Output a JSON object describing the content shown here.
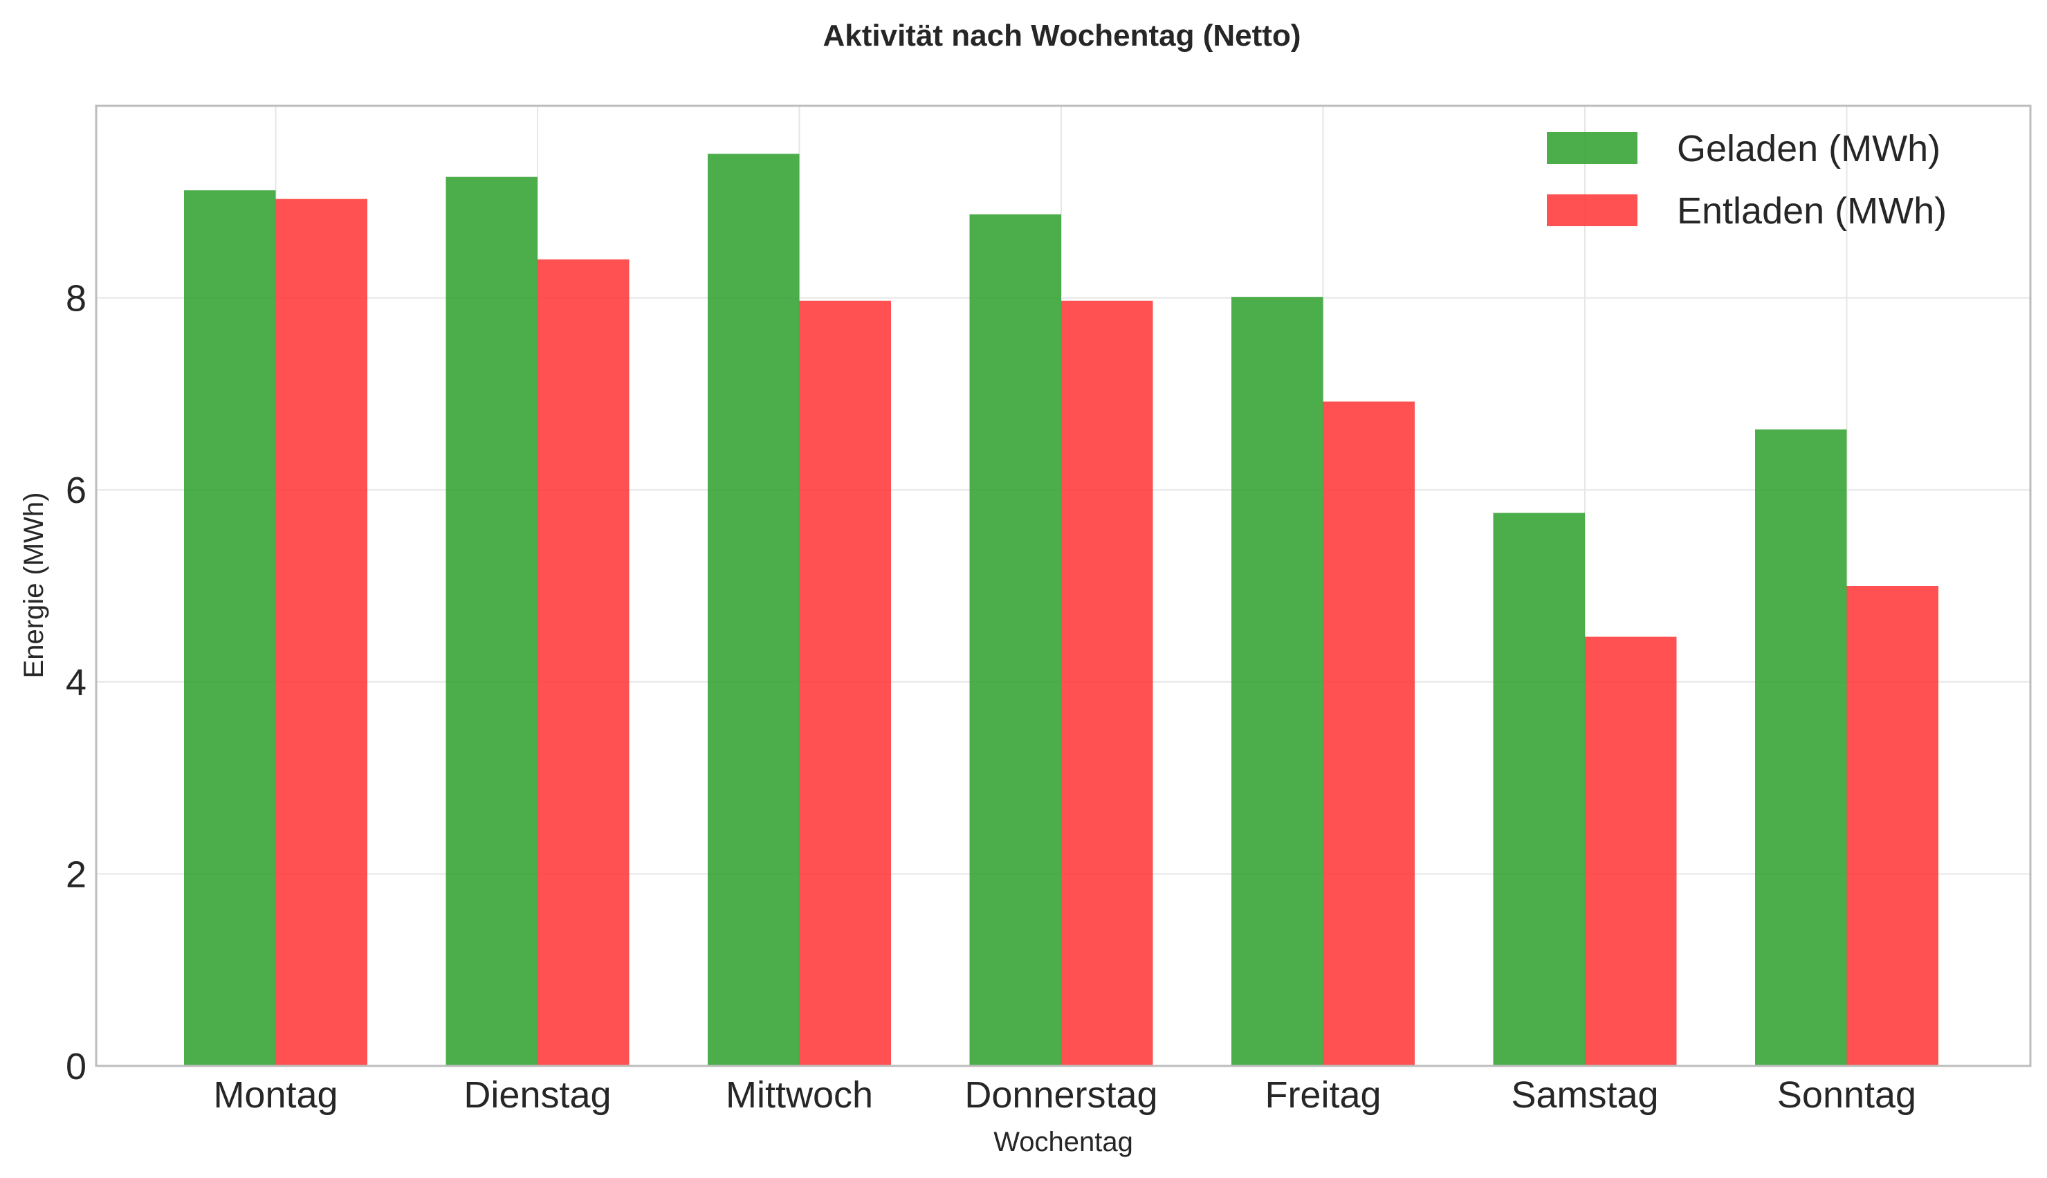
{
  "chart_data": {
    "type": "bar",
    "title": "Aktivität nach Wochentag (Netto)",
    "xlabel": "Wochentag",
    "ylabel": "Energie (MWh)",
    "categories": [
      "Montag",
      "Dienstag",
      "Mittwoch",
      "Donnerstag",
      "Freitag",
      "Samstag",
      "Sonntag"
    ],
    "series": [
      {
        "name": "Geladen (MWh)",
        "color": "#2ca02c",
        "values": [
          9.12,
          9.26,
          9.5,
          8.87,
          8.01,
          5.76,
          6.63
        ]
      },
      {
        "name": "Entladen (MWh)",
        "color": "#ff3333",
        "values": [
          9.03,
          8.4,
          7.97,
          7.97,
          6.92,
          4.47,
          5.0
        ]
      }
    ],
    "ylim": [
      0,
      10.0
    ],
    "yticks": [
      0,
      2,
      4,
      6,
      8
    ],
    "grid": true,
    "legend_position": "top-right"
  }
}
